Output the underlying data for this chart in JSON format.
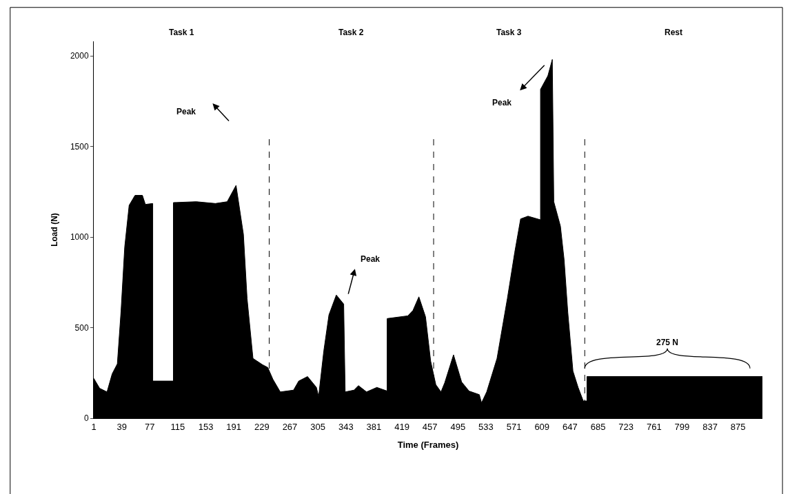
{
  "chart_data": {
    "type": "area",
    "xlabel": "Time (Frames)",
    "ylabel": "Load (N)",
    "x": [
      1,
      9,
      19,
      26,
      33,
      38,
      43,
      49,
      57,
      67,
      71,
      81,
      81,
      109,
      109,
      140,
      166,
      182,
      194,
      204,
      209,
      217,
      230,
      237,
      244,
      254,
      272,
      279,
      291,
      303,
      306,
      313,
      320,
      330,
      340,
      342,
      354,
      360,
      371,
      385,
      399,
      399,
      427,
      434,
      442,
      451,
      458,
      465,
      472,
      477,
      489,
      500,
      510,
      524,
      527,
      534,
      548,
      562,
      572,
      580,
      590,
      607,
      607,
      617,
      623,
      625,
      634,
      639,
      644,
      651,
      658,
      665,
      670,
      670,
      908
    ],
    "series": [
      {
        "color": "#000000",
        "values": [
          220,
          165,
          145,
          245,
          300,
          590,
          945,
          1175,
          1230,
          1230,
          1180,
          1185,
          205,
          205,
          1190,
          1195,
          1185,
          1195,
          1285,
          1015,
          660,
          330,
          295,
          280,
          215,
          145,
          155,
          205,
          230,
          170,
          120,
          370,
          570,
          680,
          630,
          145,
          155,
          180,
          145,
          170,
          150,
          550,
          565,
          595,
          670,
          560,
          315,
          185,
          145,
          195,
          350,
          200,
          150,
          130,
          85,
          145,
          330,
          660,
          915,
          1100,
          1115,
          1095,
          1815,
          1890,
          1980,
          1195,
          1060,
          875,
          585,
          260,
          170,
          95,
          95,
          230,
          230
        ]
      }
    ],
    "xlim": [
      1,
      908
    ],
    "xticks": [
      1,
      39,
      77,
      115,
      153,
      191,
      229,
      267,
      305,
      343,
      381,
      419,
      457,
      495,
      533,
      571,
      609,
      647,
      685,
      723,
      761,
      799,
      837,
      875
    ],
    "ylim": [
      0,
      2080
    ],
    "yticks": [
      0,
      500,
      1000,
      1500,
      2000
    ],
    "ref_lines": [
      {
        "axis": "x",
        "value": 239,
        "color": "#000000",
        "line_style": "dashed"
      },
      {
        "axis": "x",
        "value": 462,
        "color": "#000000",
        "line_style": "dashed"
      },
      {
        "axis": "x",
        "value": 667,
        "color": "#000000",
        "line_style": "dashed"
      }
    ],
    "annotations": [
      "Task 1",
      "Task 2",
      "Task 3",
      "Rest",
      "Peak",
      "Peak",
      "Peak",
      "275 N"
    ]
  }
}
